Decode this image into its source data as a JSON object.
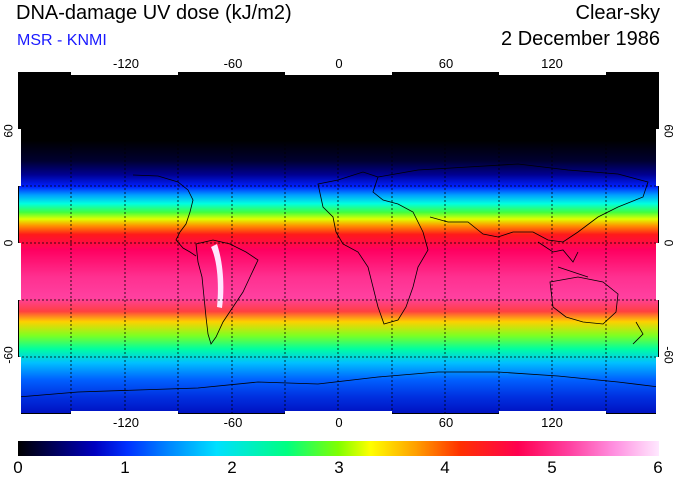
{
  "header": {
    "title": "DNA-damage UV dose (kJ/m2)",
    "subtitle": "MSR - KNMI",
    "mode": "Clear-sky",
    "date": "2 December 1986"
  },
  "map": {
    "lon_ticks_top": [
      "-120",
      "-60",
      "0",
      "60",
      "120"
    ],
    "lon_ticks_bottom": [
      "-120",
      "-60",
      "0",
      "60",
      "120"
    ],
    "lat_ticks_left": [
      "60",
      "0",
      "-60"
    ],
    "lat_ticks_right": [
      "60",
      "0",
      "-60"
    ]
  },
  "colorbar": {
    "ticks": [
      "0",
      "1",
      "2",
      "3",
      "4",
      "5",
      "6"
    ]
  }
}
